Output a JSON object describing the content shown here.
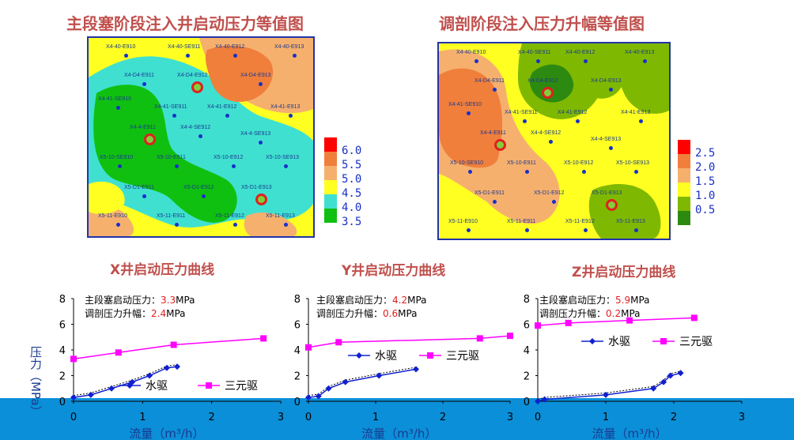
{
  "maps": [
    {
      "title": "主段塞阶段注入井启动压力等值图",
      "legend": [
        "6.0",
        "5.5",
        "5.0",
        "4.5",
        "4.0",
        "3.5"
      ],
      "legend_colors": [
        "#ff0000",
        "#f07f3c",
        "#f6b06e",
        "#ffff22",
        "#3fe0d0",
        "#10c010"
      ],
      "wells": [
        "X4-40-E910",
        "X4-40-SE911",
        "X4-40-E912",
        "X4-40-E913",
        "X4-D4-E911",
        "X4-D4-E912",
        "X4-D4-E913",
        "X4-41-SE910",
        "X4-41-SE911",
        "X4-41-E912",
        "X4-41-E913",
        "X4-4-E911",
        "X4-4-SE912",
        "X4-4-SE913",
        "X5-10-SE910",
        "X5-10-E911",
        "X5-10-E912",
        "X5-10-SE913",
        "X5-D1-E911",
        "X5-D1-E912",
        "X5-D1-E913",
        "X5-11-E910",
        "X5-11-E911",
        "X5-11-E912",
        "X5-11-E913"
      ]
    },
    {
      "title": "调剖阶段注入压力升幅等值图",
      "legend": [
        "2.5",
        "2.0",
        "1.5",
        "1.0",
        "0.5"
      ],
      "legend_colors": [
        "#ff0000",
        "#f07f3c",
        "#f6b06e",
        "#ffff22",
        "#7fb800",
        "#2d8a10"
      ],
      "wells": [
        "X4-40-E910",
        "X4-40-SE911",
        "X4-40-E912",
        "X4-40-E913",
        "X4-D4-E911",
        "X4-D4-E912",
        "X4-D4-E913",
        "X4-41-SE910",
        "X4-41-SE911",
        "X4-41-E912",
        "X4-41-E913",
        "X4-4-E911",
        "X4-4-SE912",
        "X4-4-SE913",
        "X5-10-SE910",
        "X5-10-E911",
        "X5-10-E912",
        "X5-10-SE913",
        "X5-D1-E911",
        "X5-D1-E912",
        "X5-D1-E913",
        "X5-11-E910",
        "X5-11-E911",
        "X5-11-E912",
        "X5-11-E913"
      ]
    }
  ],
  "chart_data": [
    {
      "type": "line",
      "title": "X井启动压力曲线",
      "xlabel": "流量（m³/h）",
      "ylabel": "压力（MPa）",
      "xlim": [
        0,
        3
      ],
      "ylim": [
        0,
        8
      ],
      "xticks": [
        "0",
        "1",
        "2",
        "3"
      ],
      "yticks": [
        "0",
        "2",
        "4",
        "6",
        "8"
      ],
      "note_label_1": "主段塞启动压力：",
      "note_value_1": "3.3",
      "note_label_2": "调剖压力升幅：",
      "note_value_2": "2.4",
      "note_unit": "MPa",
      "legend": "bottom-center",
      "series": [
        {
          "name": "水驱",
          "color": "#1020d0",
          "x": [
            0,
            0.25,
            0.55,
            0.85,
            1.1,
            1.35,
            1.5
          ],
          "y": [
            0.3,
            0.5,
            1.0,
            1.5,
            2.0,
            2.6,
            2.7
          ]
        },
        {
          "name": "三元驱",
          "color": "#ff00ff",
          "x": [
            0,
            0.65,
            1.45,
            2.75
          ],
          "y": [
            3.3,
            3.8,
            4.4,
            4.9
          ]
        }
      ]
    },
    {
      "type": "line",
      "title": "Y井启动压力曲线",
      "xlabel": "流量（m³/h）",
      "ylabel": "",
      "xlim": [
        0,
        3
      ],
      "ylim": [
        0,
        8
      ],
      "xticks": [
        "0",
        "1",
        "2",
        "3"
      ],
      "yticks": [
        "0",
        "2",
        "4",
        "6",
        "8"
      ],
      "note_label_1": "主段塞启动压力：",
      "note_value_1": "4.2",
      "note_label_2": "调剖压力升幅：",
      "note_value_2": "0.6",
      "note_unit": "MPa",
      "legend": "center",
      "series": [
        {
          "name": "水驱",
          "color": "#1020d0",
          "x": [
            0,
            0.15,
            0.3,
            0.55,
            1.05,
            1.6
          ],
          "y": [
            0.3,
            0.4,
            1.0,
            1.5,
            2.0,
            2.5
          ]
        },
        {
          "name": "三元驱",
          "color": "#ff00ff",
          "x": [
            0,
            0.45,
            2.55,
            3.0
          ],
          "y": [
            4.2,
            4.6,
            4.9,
            5.1
          ]
        }
      ]
    },
    {
      "type": "line",
      "title": "Z井启动压力曲线",
      "xlabel": "流量（m³/h）",
      "ylabel": "",
      "xlim": [
        0,
        3
      ],
      "ylim": [
        0,
        8
      ],
      "xticks": [
        "0",
        "1",
        "2",
        "3"
      ],
      "yticks": [
        "0",
        "2",
        "4",
        "6",
        "8"
      ],
      "note_label_1": "主段塞启动压力：",
      "note_value_1": "5.9",
      "note_label_2": "调剖压力升幅：",
      "note_value_2": "0.2",
      "note_unit": "MPa",
      "legend": "top-center",
      "series": [
        {
          "name": "水驱",
          "color": "#1020d0",
          "x": [
            0,
            0.1,
            1.0,
            1.7,
            1.85,
            1.95,
            2.1
          ],
          "y": [
            0,
            0.15,
            0.5,
            1.0,
            1.5,
            2.0,
            2.2
          ]
        },
        {
          "name": "三元驱",
          "color": "#ff00ff",
          "x": [
            0,
            0.45,
            1.35,
            2.3
          ],
          "y": [
            5.9,
            6.1,
            6.3,
            6.5
          ]
        }
      ]
    }
  ]
}
